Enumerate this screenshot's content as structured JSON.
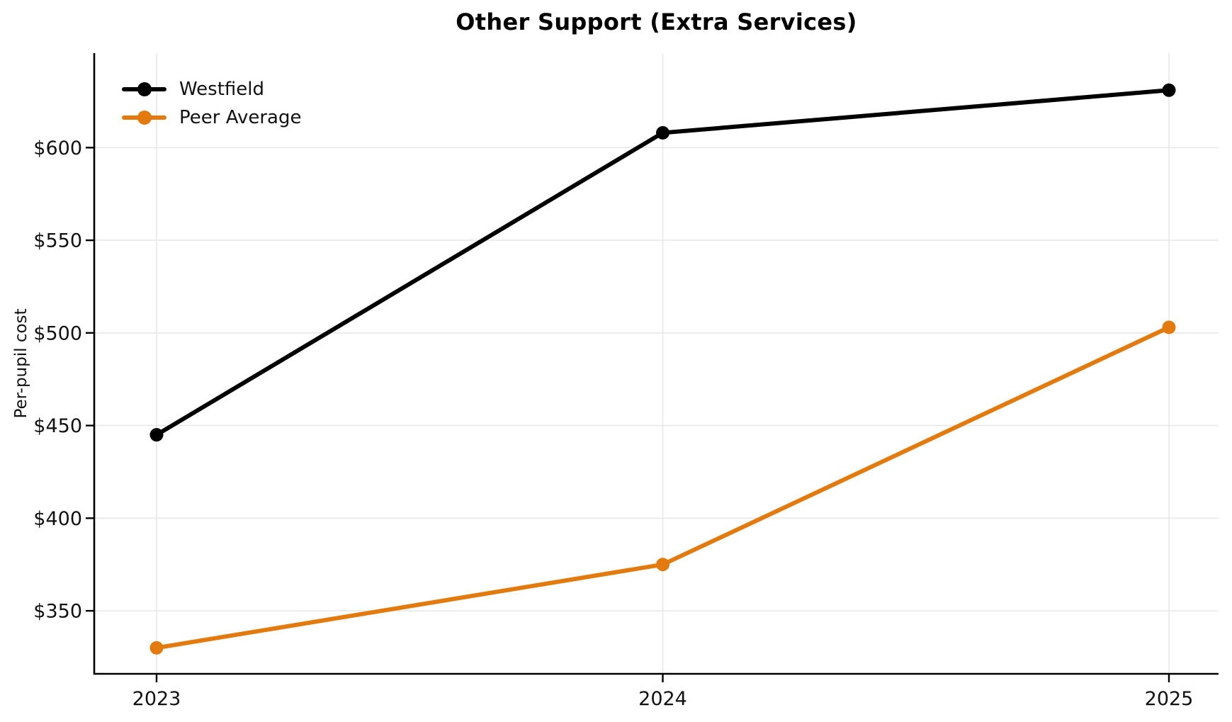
{
  "chart_data": {
    "type": "line",
    "title": "Other Support (Extra Services)",
    "xlabel": "",
    "ylabel": "Per-pupil cost",
    "categories": [
      "2023",
      "2024",
      "2025"
    ],
    "series": [
      {
        "name": "Westfield",
        "color": "#000000",
        "values": [
          445,
          608,
          631
        ]
      },
      {
        "name": "Peer Average",
        "color": "#E27A0E",
        "values": [
          330,
          375,
          503
        ]
      }
    ],
    "y_ticks": [
      350,
      400,
      450,
      500,
      550,
      600
    ],
    "y_tick_prefix": "$",
    "ylim": [
      316,
      651
    ],
    "grid": true,
    "grid_color": "#e8e8e8",
    "axis_color": "#000000",
    "text_color": "#111111",
    "legend_position": "upper left"
  }
}
